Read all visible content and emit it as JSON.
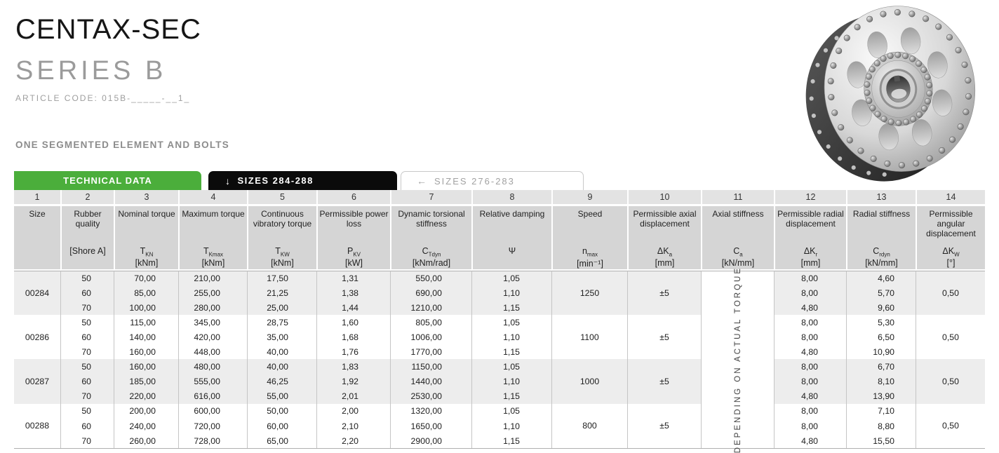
{
  "header": {
    "title": "CENTAX-SEC",
    "subtitle": "SERIES B",
    "article_code": "ARTICLE CODE: 015B-_____-__1_",
    "section_label": "ONE SEGMENTED ELEMENT AND BOLTS"
  },
  "tabs": [
    {
      "label": "TECHNICAL DATA"
    },
    {
      "arrow": "↓",
      "label": "SIZES 284-288"
    },
    {
      "arrow": "←",
      "label": "SIZES 276-283"
    }
  ],
  "colors": {
    "accent_green": "#4bae3b",
    "tab_black": "#0b0b0b",
    "header_gray": "#d5d5d5",
    "row_stripe_gray": "#ededed"
  },
  "table": {
    "columns": [
      {
        "num": "1",
        "name": "Size",
        "sym": "",
        "sub": "",
        "unit": ""
      },
      {
        "num": "2",
        "name": "Rubber quality",
        "sym": "[Shore A]",
        "sub": "",
        "unit": ""
      },
      {
        "num": "3",
        "name": "Nominal torque",
        "sym": "T",
        "sub": "KN",
        "unit": "[kNm]"
      },
      {
        "num": "4",
        "name": "Maximum torque",
        "sym": "T",
        "sub": "Kmax",
        "unit": "[kNm]"
      },
      {
        "num": "5",
        "name": "Continuous vibratory torque",
        "sym": "T",
        "sub": "KW",
        "unit": "[kNm]"
      },
      {
        "num": "6",
        "name": "Permissible power loss",
        "sym": "P",
        "sub": "KV",
        "unit": "[kW]"
      },
      {
        "num": "7",
        "name": "Dynamic torsional stiffness",
        "sym": "C",
        "sub": "Tdyn",
        "unit": "[kNm/rad]"
      },
      {
        "num": "8",
        "name": "Relative damping",
        "sym": "Ψ",
        "sub": "",
        "unit": ""
      },
      {
        "num": "9",
        "name": "Speed",
        "sym": "n",
        "sub": "max",
        "unit": "[min⁻¹]"
      },
      {
        "num": "10",
        "name": "Permissible axial displacement",
        "sym": "ΔK",
        "sub": "a",
        "unit": "[mm]"
      },
      {
        "num": "11",
        "name": "Axial stiffness",
        "sym": "C",
        "sub": "a",
        "unit": "[kN/mm]"
      },
      {
        "num": "12",
        "name": "Permissible radial displacement",
        "sym": "ΔK",
        "sub": "r",
        "unit": "[mm]"
      },
      {
        "num": "13",
        "name": "Radial stiffness",
        "sym": "C",
        "sub": "rdyn",
        "unit": "[kN/mm]"
      },
      {
        "num": "14",
        "name": "Permissible angular displacement",
        "sym": "ΔK",
        "sub": "W",
        "unit": "[°]"
      }
    ],
    "axial_stiffness_note": "DEPENDING ON ACTUAL TORQUE",
    "groups": [
      {
        "size": "00284",
        "speed": "1250",
        "axial_displacement": "±5",
        "angular_displacement": "0,50",
        "rows": [
          {
            "shore_a": "50",
            "nominal_torque": "70,00",
            "maximum_torque": "210,00",
            "vibratory_torque": "17,50",
            "power_loss": "1,31",
            "torsional_stiffness": "550,00",
            "damping": "1,05",
            "radial_displacement": "8,00",
            "radial_stiffness": "4,60"
          },
          {
            "shore_a": "60",
            "nominal_torque": "85,00",
            "maximum_torque": "255,00",
            "vibratory_torque": "21,25",
            "power_loss": "1,38",
            "torsional_stiffness": "690,00",
            "damping": "1,10",
            "radial_displacement": "8,00",
            "radial_stiffness": "5,70"
          },
          {
            "shore_a": "70",
            "nominal_torque": "100,00",
            "maximum_torque": "280,00",
            "vibratory_torque": "25,00",
            "power_loss": "1,44",
            "torsional_stiffness": "1210,00",
            "damping": "1,15",
            "radial_displacement": "4,80",
            "radial_stiffness": "9,60"
          }
        ]
      },
      {
        "size": "00286",
        "speed": "1100",
        "axial_displacement": "±5",
        "angular_displacement": "0,50",
        "rows": [
          {
            "shore_a": "50",
            "nominal_torque": "115,00",
            "maximum_torque": "345,00",
            "vibratory_torque": "28,75",
            "power_loss": "1,60",
            "torsional_stiffness": "805,00",
            "damping": "1,05",
            "radial_displacement": "8,00",
            "radial_stiffness": "5,30"
          },
          {
            "shore_a": "60",
            "nominal_torque": "140,00",
            "maximum_torque": "420,00",
            "vibratory_torque": "35,00",
            "power_loss": "1,68",
            "torsional_stiffness": "1006,00",
            "damping": "1,10",
            "radial_displacement": "8,00",
            "radial_stiffness": "6,50"
          },
          {
            "shore_a": "70",
            "nominal_torque": "160,00",
            "maximum_torque": "448,00",
            "vibratory_torque": "40,00",
            "power_loss": "1,76",
            "torsional_stiffness": "1770,00",
            "damping": "1,15",
            "radial_displacement": "4,80",
            "radial_stiffness": "10,90"
          }
        ]
      },
      {
        "size": "00287",
        "speed": "1000",
        "axial_displacement": "±5",
        "angular_displacement": "0,50",
        "rows": [
          {
            "shore_a": "50",
            "nominal_torque": "160,00",
            "maximum_torque": "480,00",
            "vibratory_torque": "40,00",
            "power_loss": "1,83",
            "torsional_stiffness": "1150,00",
            "damping": "1,05",
            "radial_displacement": "8,00",
            "radial_stiffness": "6,70"
          },
          {
            "shore_a": "60",
            "nominal_torque": "185,00",
            "maximum_torque": "555,00",
            "vibratory_torque": "46,25",
            "power_loss": "1,92",
            "torsional_stiffness": "1440,00",
            "damping": "1,10",
            "radial_displacement": "8,00",
            "radial_stiffness": "8,10"
          },
          {
            "shore_a": "70",
            "nominal_torque": "220,00",
            "maximum_torque": "616,00",
            "vibratory_torque": "55,00",
            "power_loss": "2,01",
            "torsional_stiffness": "2530,00",
            "damping": "1,15",
            "radial_displacement": "4,80",
            "radial_stiffness": "13,90"
          }
        ]
      },
      {
        "size": "00288",
        "speed": "800",
        "axial_displacement": "±5",
        "angular_displacement": "0,50",
        "rows": [
          {
            "shore_a": "50",
            "nominal_torque": "200,00",
            "maximum_torque": "600,00",
            "vibratory_torque": "50,00",
            "power_loss": "2,00",
            "torsional_stiffness": "1320,00",
            "damping": "1,05",
            "radial_displacement": "8,00",
            "radial_stiffness": "7,10"
          },
          {
            "shore_a": "60",
            "nominal_torque": "240,00",
            "maximum_torque": "720,00",
            "vibratory_torque": "60,00",
            "power_loss": "2,10",
            "torsional_stiffness": "1650,00",
            "damping": "1,10",
            "radial_displacement": "8,00",
            "radial_stiffness": "8,80"
          },
          {
            "shore_a": "70",
            "nominal_torque": "260,00",
            "maximum_torque": "728,00",
            "vibratory_torque": "65,00",
            "power_loss": "2,20",
            "torsional_stiffness": "2900,00",
            "damping": "1,15",
            "radial_displacement": "4,80",
            "radial_stiffness": "15,50"
          }
        ]
      }
    ]
  }
}
